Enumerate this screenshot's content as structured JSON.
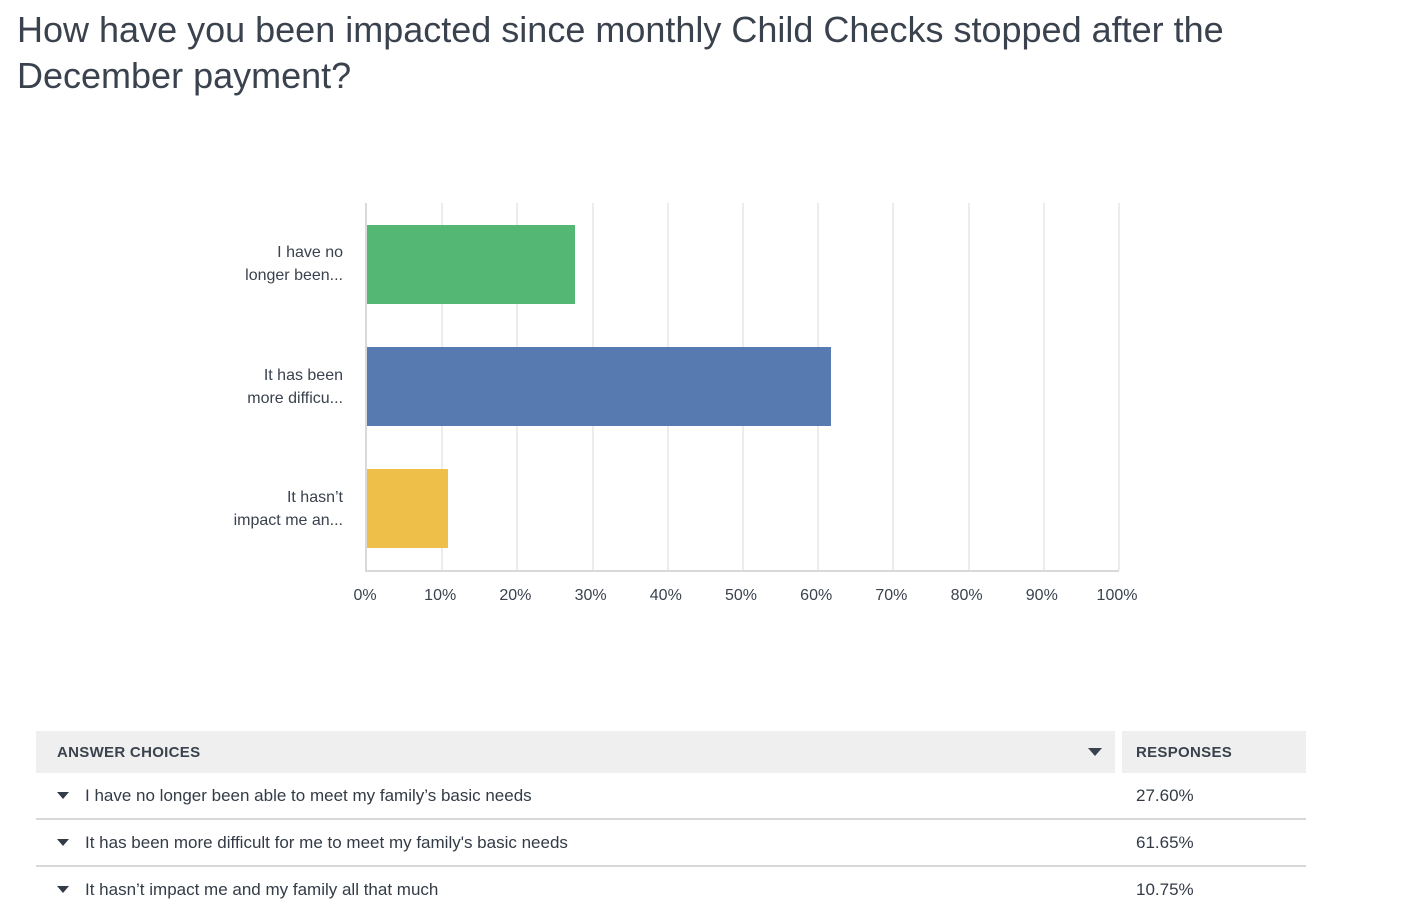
{
  "title": {
    "lines": [
      "How have you been impacted since monthly Child Checks stopped after the",
      "December payment?"
    ]
  },
  "chart_data": {
    "type": "bar",
    "orientation": "horizontal",
    "title": "How have you been impacted since monthly Child Checks stopped after the December payment?",
    "categories": [
      "I have no longer been able to meet my family’s basic needs",
      "It has been more difficult for me to meet my family's basic needs",
      "It hasn’t impact me and my family all that much"
    ],
    "category_display_lines": [
      [
        "I have no",
        "longer been..."
      ],
      [
        "It has been",
        "more difficu..."
      ],
      [
        "It hasn’t",
        "impact me an..."
      ]
    ],
    "values": [
      27.6,
      61.65,
      10.75
    ],
    "unit": "%",
    "bar_colors": [
      "#54B774",
      "#577AB1",
      "#EEC04A"
    ],
    "xlabel": "",
    "ylabel": "",
    "xlim": [
      0,
      100
    ],
    "x_ticks": [
      {
        "label": "0%",
        "value": 0
      },
      {
        "label": "10%",
        "value": 10
      },
      {
        "label": "20%",
        "value": 20
      },
      {
        "label": "30%",
        "value": 30
      },
      {
        "label": "40%",
        "value": 40
      },
      {
        "label": "50%",
        "value": 50
      },
      {
        "label": "60%",
        "value": 60
      },
      {
        "label": "70%",
        "value": 70
      },
      {
        "label": "80%",
        "value": 80
      },
      {
        "label": "90%",
        "value": 90
      },
      {
        "label": "100%",
        "value": 100
      }
    ],
    "grid": "vertical",
    "legend": "none"
  },
  "table": {
    "headers": {
      "answer": "ANSWER CHOICES",
      "responses": "RESPONSES"
    },
    "rows": [
      {
        "answer": "I have no longer been able to meet my family’s basic needs",
        "response": "27.60%"
      },
      {
        "answer": "It has been more difficult for me to meet my family's basic needs",
        "response": "61.65%"
      },
      {
        "answer": "It hasn’t impact me and my family all that much",
        "response": "10.75%"
      }
    ]
  }
}
